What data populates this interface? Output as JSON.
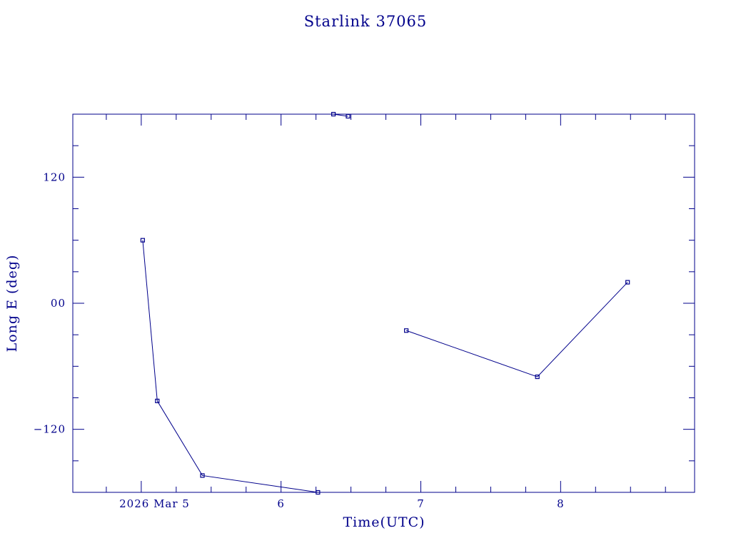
{
  "colors": {
    "ink": "#00008b",
    "background": "#ffffff"
  },
  "chart_data": {
    "type": "line",
    "title": "Starlink 37065",
    "xlabel": "Time(UTC)",
    "ylabel": "Long E (deg)",
    "x_tick_labels": [
      "2026 Mar  5",
      "6",
      "7",
      "8"
    ],
    "x_tick_values": [
      "2026-03-05",
      "2026-03-06",
      "2026-03-07",
      "2026-03-08"
    ],
    "y_tick_labels": [
      "120",
      "00",
      "−120"
    ],
    "y_tick_values": [
      120,
      0,
      -120
    ],
    "xlim": [
      "2026-03-04 12:15",
      "2026-03-08 23:00"
    ],
    "ylim": [
      -180,
      180
    ],
    "grid": false,
    "series": [
      {
        "marker": "square",
        "x": [
          "2026-03-05 00:15",
          "2026-03-05 02:45",
          "2026-03-05 10:30",
          "2026-03-06 06:20",
          "2026-03-06 09:00",
          "2026-03-06 11:30",
          "2026-03-06 21:30",
          "2026-03-07 20:00",
          "2026-03-08 11:30"
        ],
        "y": [
          60,
          -93,
          -164,
          -180,
          180,
          178,
          -26,
          -70,
          20
        ]
      }
    ]
  }
}
